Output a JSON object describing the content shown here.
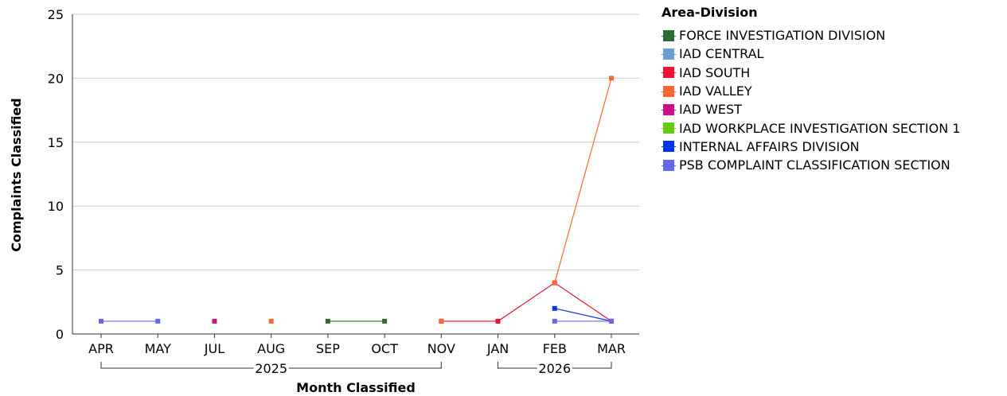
{
  "legend": {
    "title": "Area-Division"
  },
  "chart_data": {
    "type": "line",
    "xlabel": "Month Classified",
    "ylabel": "Complaints Classified",
    "ylim": [
      0,
      25
    ],
    "yticks": [
      0,
      5,
      10,
      15,
      20,
      25
    ],
    "grid": true,
    "legend_position": "right",
    "categories": [
      "APR",
      "MAY",
      "JUL",
      "AUG",
      "SEP",
      "OCT",
      "NOV",
      "JAN",
      "FEB",
      "MAR"
    ],
    "year_groups": [
      {
        "label": "2025",
        "from": 0,
        "to": 6
      },
      {
        "label": "2026",
        "from": 7,
        "to": 9
      }
    ],
    "series": [
      {
        "name": "FORCE INVESTIGATION DIVISION",
        "color": "#2e6b30",
        "values": [
          null,
          null,
          null,
          null,
          1,
          1,
          null,
          null,
          null,
          null
        ]
      },
      {
        "name": "IAD CENTRAL",
        "color": "#6b9fd4",
        "values": [
          null,
          null,
          null,
          null,
          null,
          null,
          null,
          null,
          null,
          null
        ]
      },
      {
        "name": "IAD SOUTH",
        "color": "#ee1133",
        "values": [
          null,
          null,
          null,
          null,
          null,
          null,
          1,
          1,
          4,
          1
        ]
      },
      {
        "name": "IAD VALLEY",
        "color": "#ff6633",
        "values": [
          null,
          null,
          null,
          1,
          null,
          null,
          1,
          null,
          4,
          20
        ]
      },
      {
        "name": "IAD WEST",
        "color": "#cc1188",
        "values": [
          null,
          null,
          1,
          null,
          null,
          null,
          null,
          null,
          null,
          null
        ]
      },
      {
        "name": "IAD WORKPLACE INVESTIGATION SECTION 1",
        "color": "#66cc11",
        "values": [
          null,
          null,
          null,
          null,
          null,
          null,
          null,
          null,
          null,
          null
        ]
      },
      {
        "name": "INTERNAL AFFAIRS DIVISION",
        "color": "#0033ee",
        "values": [
          null,
          null,
          null,
          null,
          null,
          null,
          null,
          null,
          2,
          1
        ]
      },
      {
        "name": "PSB COMPLAINT CLASSIFICATION SECTION",
        "color": "#6666ee",
        "values": [
          1,
          1,
          null,
          null,
          null,
          null,
          null,
          null,
          1,
          1
        ]
      }
    ]
  }
}
